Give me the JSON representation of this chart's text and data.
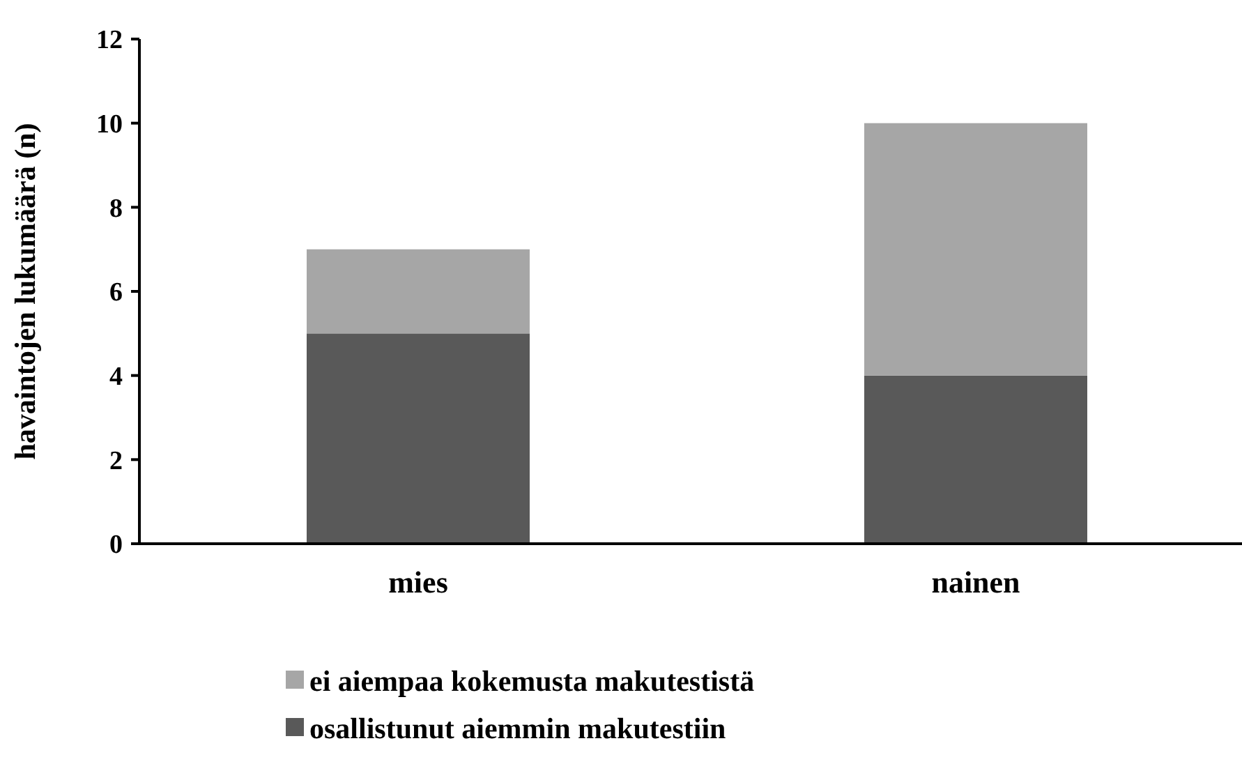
{
  "chart_data": {
    "type": "bar",
    "stacked": true,
    "ylabel": "havaintojen lukumäärä (n)",
    "categories": [
      "mies",
      "nainen"
    ],
    "series": [
      {
        "name": "osallistunut aiemmin makutestiin",
        "color": "#595959",
        "values": [
          5,
          4
        ]
      },
      {
        "name": "ei aiempaa kokemusta makutestistä",
        "color": "#a6a6a6",
        "values": [
          2,
          6
        ]
      }
    ],
    "ylim": [
      0,
      12
    ],
    "yticks": [
      0,
      2,
      4,
      6,
      8,
      10,
      12
    ],
    "grid": false,
    "legend": "bottom"
  }
}
